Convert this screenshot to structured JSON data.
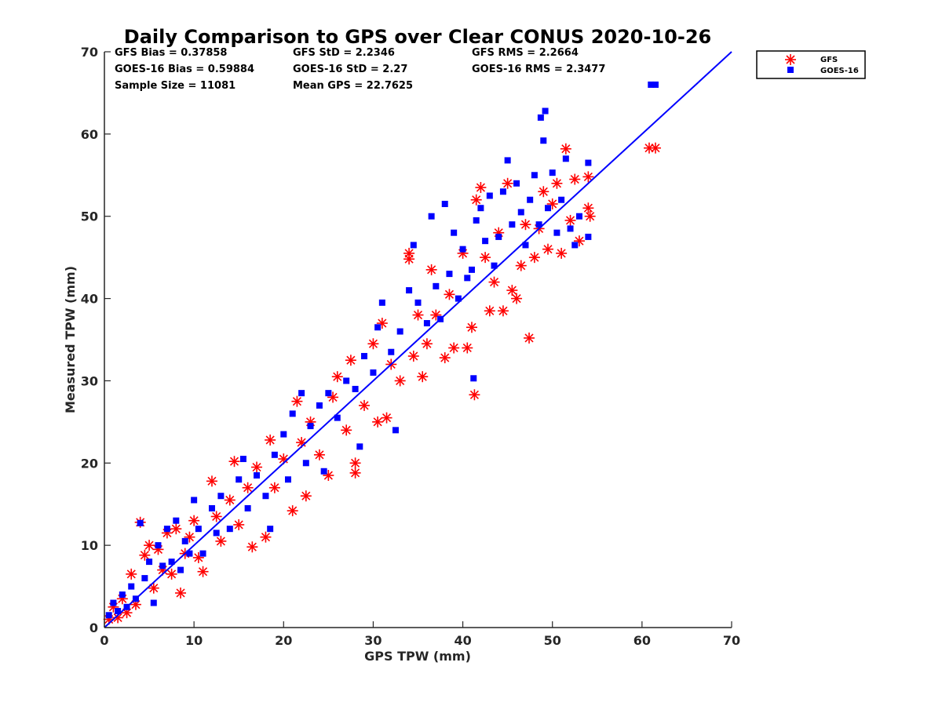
{
  "chart_data": {
    "type": "scatter",
    "title": "Daily Comparison to GPS over Clear CONUS 2020-10-26",
    "xlabel": "GPS TPW (mm)",
    "ylabel": "Measured TPW (mm)",
    "xlim": [
      0,
      70
    ],
    "ylim": [
      0,
      70
    ],
    "xticks": [
      "0",
      "10",
      "20",
      "30",
      "40",
      "50",
      "60",
      "70"
    ],
    "yticks": [
      "0",
      "10",
      "20",
      "30",
      "40",
      "50",
      "60",
      "70"
    ],
    "grid": false,
    "legend_position": "outside top-right",
    "stats": {
      "gfs_bias": "GFS Bias = 0.37858",
      "goes_bias": "GOES-16 Bias = 0.59884",
      "sample_size": "Sample Size = 11081",
      "gfs_std": "GFS StD = 2.2346",
      "goes_std": "GOES-16 StD = 2.27",
      "mean_gps": "Mean GPS = 22.7625",
      "gfs_rms": "GFS RMS = 2.2664",
      "goes_rms": "GOES-16 RMS = 2.3477"
    },
    "series": [
      {
        "name": "GFS",
        "marker": "asterisk",
        "color": "#ff0000",
        "points": [
          [
            0.5,
            1.0
          ],
          [
            1.0,
            2.5
          ],
          [
            1.5,
            1.2
          ],
          [
            2.0,
            3.5
          ],
          [
            2.5,
            1.8
          ],
          [
            3.0,
            6.5
          ],
          [
            3.5,
            2.8
          ],
          [
            4.0,
            12.8
          ],
          [
            4.5,
            8.8
          ],
          [
            5.0,
            10.0
          ],
          [
            5.5,
            4.8
          ],
          [
            6.0,
            9.5
          ],
          [
            6.5,
            7.0
          ],
          [
            7.0,
            11.5
          ],
          [
            7.5,
            6.5
          ],
          [
            8.0,
            12.0
          ],
          [
            8.5,
            4.2
          ],
          [
            9.0,
            9.0
          ],
          [
            9.5,
            11.0
          ],
          [
            10.0,
            13.0
          ],
          [
            10.5,
            8.5
          ],
          [
            11.0,
            6.8
          ],
          [
            12.0,
            17.8
          ],
          [
            12.5,
            13.5
          ],
          [
            13.0,
            10.5
          ],
          [
            14.0,
            15.5
          ],
          [
            14.5,
            20.2
          ],
          [
            15.0,
            12.5
          ],
          [
            16.0,
            17.0
          ],
          [
            16.5,
            9.8
          ],
          [
            17.0,
            19.5
          ],
          [
            18.0,
            11.0
          ],
          [
            18.5,
            22.8
          ],
          [
            19.0,
            17.0
          ],
          [
            20.0,
            20.5
          ],
          [
            21.0,
            14.2
          ],
          [
            21.5,
            27.5
          ],
          [
            22.0,
            22.5
          ],
          [
            22.5,
            16.0
          ],
          [
            23.0,
            25.0
          ],
          [
            24.0,
            21.0
          ],
          [
            25.0,
            18.5
          ],
          [
            25.5,
            28.0
          ],
          [
            26.0,
            30.5
          ],
          [
            27.0,
            24.0
          ],
          [
            27.5,
            32.5
          ],
          [
            28.0,
            20.0
          ],
          [
            28.0,
            18.8
          ],
          [
            29.0,
            27.0
          ],
          [
            30.0,
            34.5
          ],
          [
            30.5,
            25.0
          ],
          [
            31.0,
            37.0
          ],
          [
            31.5,
            25.5
          ],
          [
            32.0,
            32.0
          ],
          [
            33.0,
            30.0
          ],
          [
            34.0,
            45.5
          ],
          [
            34.0,
            44.8
          ],
          [
            34.5,
            33.0
          ],
          [
            35.0,
            38.0
          ],
          [
            35.5,
            30.5
          ],
          [
            36.0,
            34.5
          ],
          [
            36.5,
            43.5
          ],
          [
            37.0,
            38.0
          ],
          [
            38.0,
            32.8
          ],
          [
            38.5,
            40.5
          ],
          [
            39.0,
            34.0
          ],
          [
            40.0,
            45.5
          ],
          [
            40.5,
            34.0
          ],
          [
            41.0,
            36.5
          ],
          [
            41.3,
            28.3
          ],
          [
            41.5,
            52.0
          ],
          [
            42.0,
            53.5
          ],
          [
            42.5,
            45.0
          ],
          [
            43.0,
            38.5
          ],
          [
            43.5,
            42.0
          ],
          [
            44.0,
            48.0
          ],
          [
            44.5,
            38.5
          ],
          [
            45.0,
            54.0
          ],
          [
            45.5,
            41.0
          ],
          [
            46.0,
            40.0
          ],
          [
            46.5,
            44.0
          ],
          [
            47.0,
            49.0
          ],
          [
            47.4,
            35.2
          ],
          [
            48.0,
            45.0
          ],
          [
            48.5,
            48.5
          ],
          [
            49.0,
            53.0
          ],
          [
            49.5,
            46.0
          ],
          [
            50.0,
            51.5
          ],
          [
            50.5,
            54.0
          ],
          [
            51.0,
            45.5
          ],
          [
            51.5,
            58.2
          ],
          [
            52.0,
            49.5
          ],
          [
            52.5,
            54.5
          ],
          [
            53.0,
            47.0
          ],
          [
            54.0,
            51.0
          ],
          [
            54.2,
            50.0
          ],
          [
            54.0,
            54.8
          ],
          [
            60.8,
            58.3
          ],
          [
            61.5,
            58.3
          ]
        ]
      },
      {
        "name": "GOES-16",
        "marker": "square",
        "color": "#0000ff",
        "points": [
          [
            0.5,
            1.5
          ],
          [
            1.0,
            3.0
          ],
          [
            1.5,
            2.0
          ],
          [
            2.0,
            4.0
          ],
          [
            2.5,
            2.5
          ],
          [
            3.0,
            5.0
          ],
          [
            3.5,
            3.5
          ],
          [
            4.0,
            12.7
          ],
          [
            4.5,
            6.0
          ],
          [
            5.0,
            8.0
          ],
          [
            5.5,
            3.0
          ],
          [
            6.0,
            10.0
          ],
          [
            6.5,
            7.5
          ],
          [
            7.0,
            12.0
          ],
          [
            7.5,
            8.0
          ],
          [
            8.0,
            13.0
          ],
          [
            8.5,
            7.0
          ],
          [
            9.0,
            10.5
          ],
          [
            9.5,
            9.0
          ],
          [
            10.0,
            15.5
          ],
          [
            10.5,
            12.0
          ],
          [
            11.0,
            9.0
          ],
          [
            12.0,
            14.5
          ],
          [
            12.5,
            11.5
          ],
          [
            13.0,
            16.0
          ],
          [
            14.0,
            12.0
          ],
          [
            15.0,
            18.0
          ],
          [
            15.5,
            20.5
          ],
          [
            16.0,
            14.5
          ],
          [
            17.0,
            18.5
          ],
          [
            18.0,
            16.0
          ],
          [
            18.5,
            12.0
          ],
          [
            19.0,
            21.0
          ],
          [
            20.0,
            23.5
          ],
          [
            20.5,
            18.0
          ],
          [
            21.0,
            26.0
          ],
          [
            22.0,
            28.5
          ],
          [
            22.5,
            20.0
          ],
          [
            23.0,
            24.5
          ],
          [
            24.0,
            27.0
          ],
          [
            24.5,
            19.0
          ],
          [
            25.0,
            28.5
          ],
          [
            26.0,
            25.5
          ],
          [
            27.0,
            30.0
          ],
          [
            28.0,
            29.0
          ],
          [
            28.5,
            22.0
          ],
          [
            29.0,
            33.0
          ],
          [
            30.0,
            31.0
          ],
          [
            30.5,
            36.5
          ],
          [
            31.0,
            39.5
          ],
          [
            32.0,
            33.5
          ],
          [
            32.5,
            24.0
          ],
          [
            33.0,
            36.0
          ],
          [
            34.0,
            41.0
          ],
          [
            34.5,
            46.5
          ],
          [
            35.0,
            39.5
          ],
          [
            36.0,
            37.0
          ],
          [
            36.5,
            50.0
          ],
          [
            37.0,
            41.5
          ],
          [
            37.5,
            37.5
          ],
          [
            38.0,
            51.5
          ],
          [
            38.5,
            43.0
          ],
          [
            39.0,
            48.0
          ],
          [
            39.5,
            40.0
          ],
          [
            40.0,
            46.0
          ],
          [
            40.5,
            42.5
          ],
          [
            41.0,
            43.5
          ],
          [
            41.2,
            30.3
          ],
          [
            41.5,
            49.5
          ],
          [
            42.0,
            51.0
          ],
          [
            42.5,
            47.0
          ],
          [
            43.0,
            52.5
          ],
          [
            43.5,
            44.0
          ],
          [
            44.0,
            47.5
          ],
          [
            44.5,
            53.0
          ],
          [
            45.0,
            56.8
          ],
          [
            45.5,
            49.0
          ],
          [
            46.0,
            54.0
          ],
          [
            46.5,
            50.5
          ],
          [
            47.0,
            46.5
          ],
          [
            47.5,
            52.0
          ],
          [
            48.0,
            55.0
          ],
          [
            48.5,
            49.0
          ],
          [
            48.7,
            62.0
          ],
          [
            49.0,
            59.2
          ],
          [
            49.2,
            62.8
          ],
          [
            49.5,
            51.0
          ],
          [
            50.0,
            55.3
          ],
          [
            50.5,
            48.0
          ],
          [
            51.0,
            52.0
          ],
          [
            51.5,
            57.0
          ],
          [
            52.0,
            48.5
          ],
          [
            52.5,
            46.5
          ],
          [
            53.0,
            50.0
          ],
          [
            54.0,
            56.5
          ],
          [
            54.0,
            47.5
          ],
          [
            61.0,
            66.0
          ],
          [
            61.5,
            66.0
          ]
        ]
      },
      {
        "name": "1:1 line",
        "marker": "none",
        "color": "#0000ff",
        "points": [
          [
            0,
            0
          ],
          [
            70,
            70
          ]
        ]
      }
    ]
  }
}
